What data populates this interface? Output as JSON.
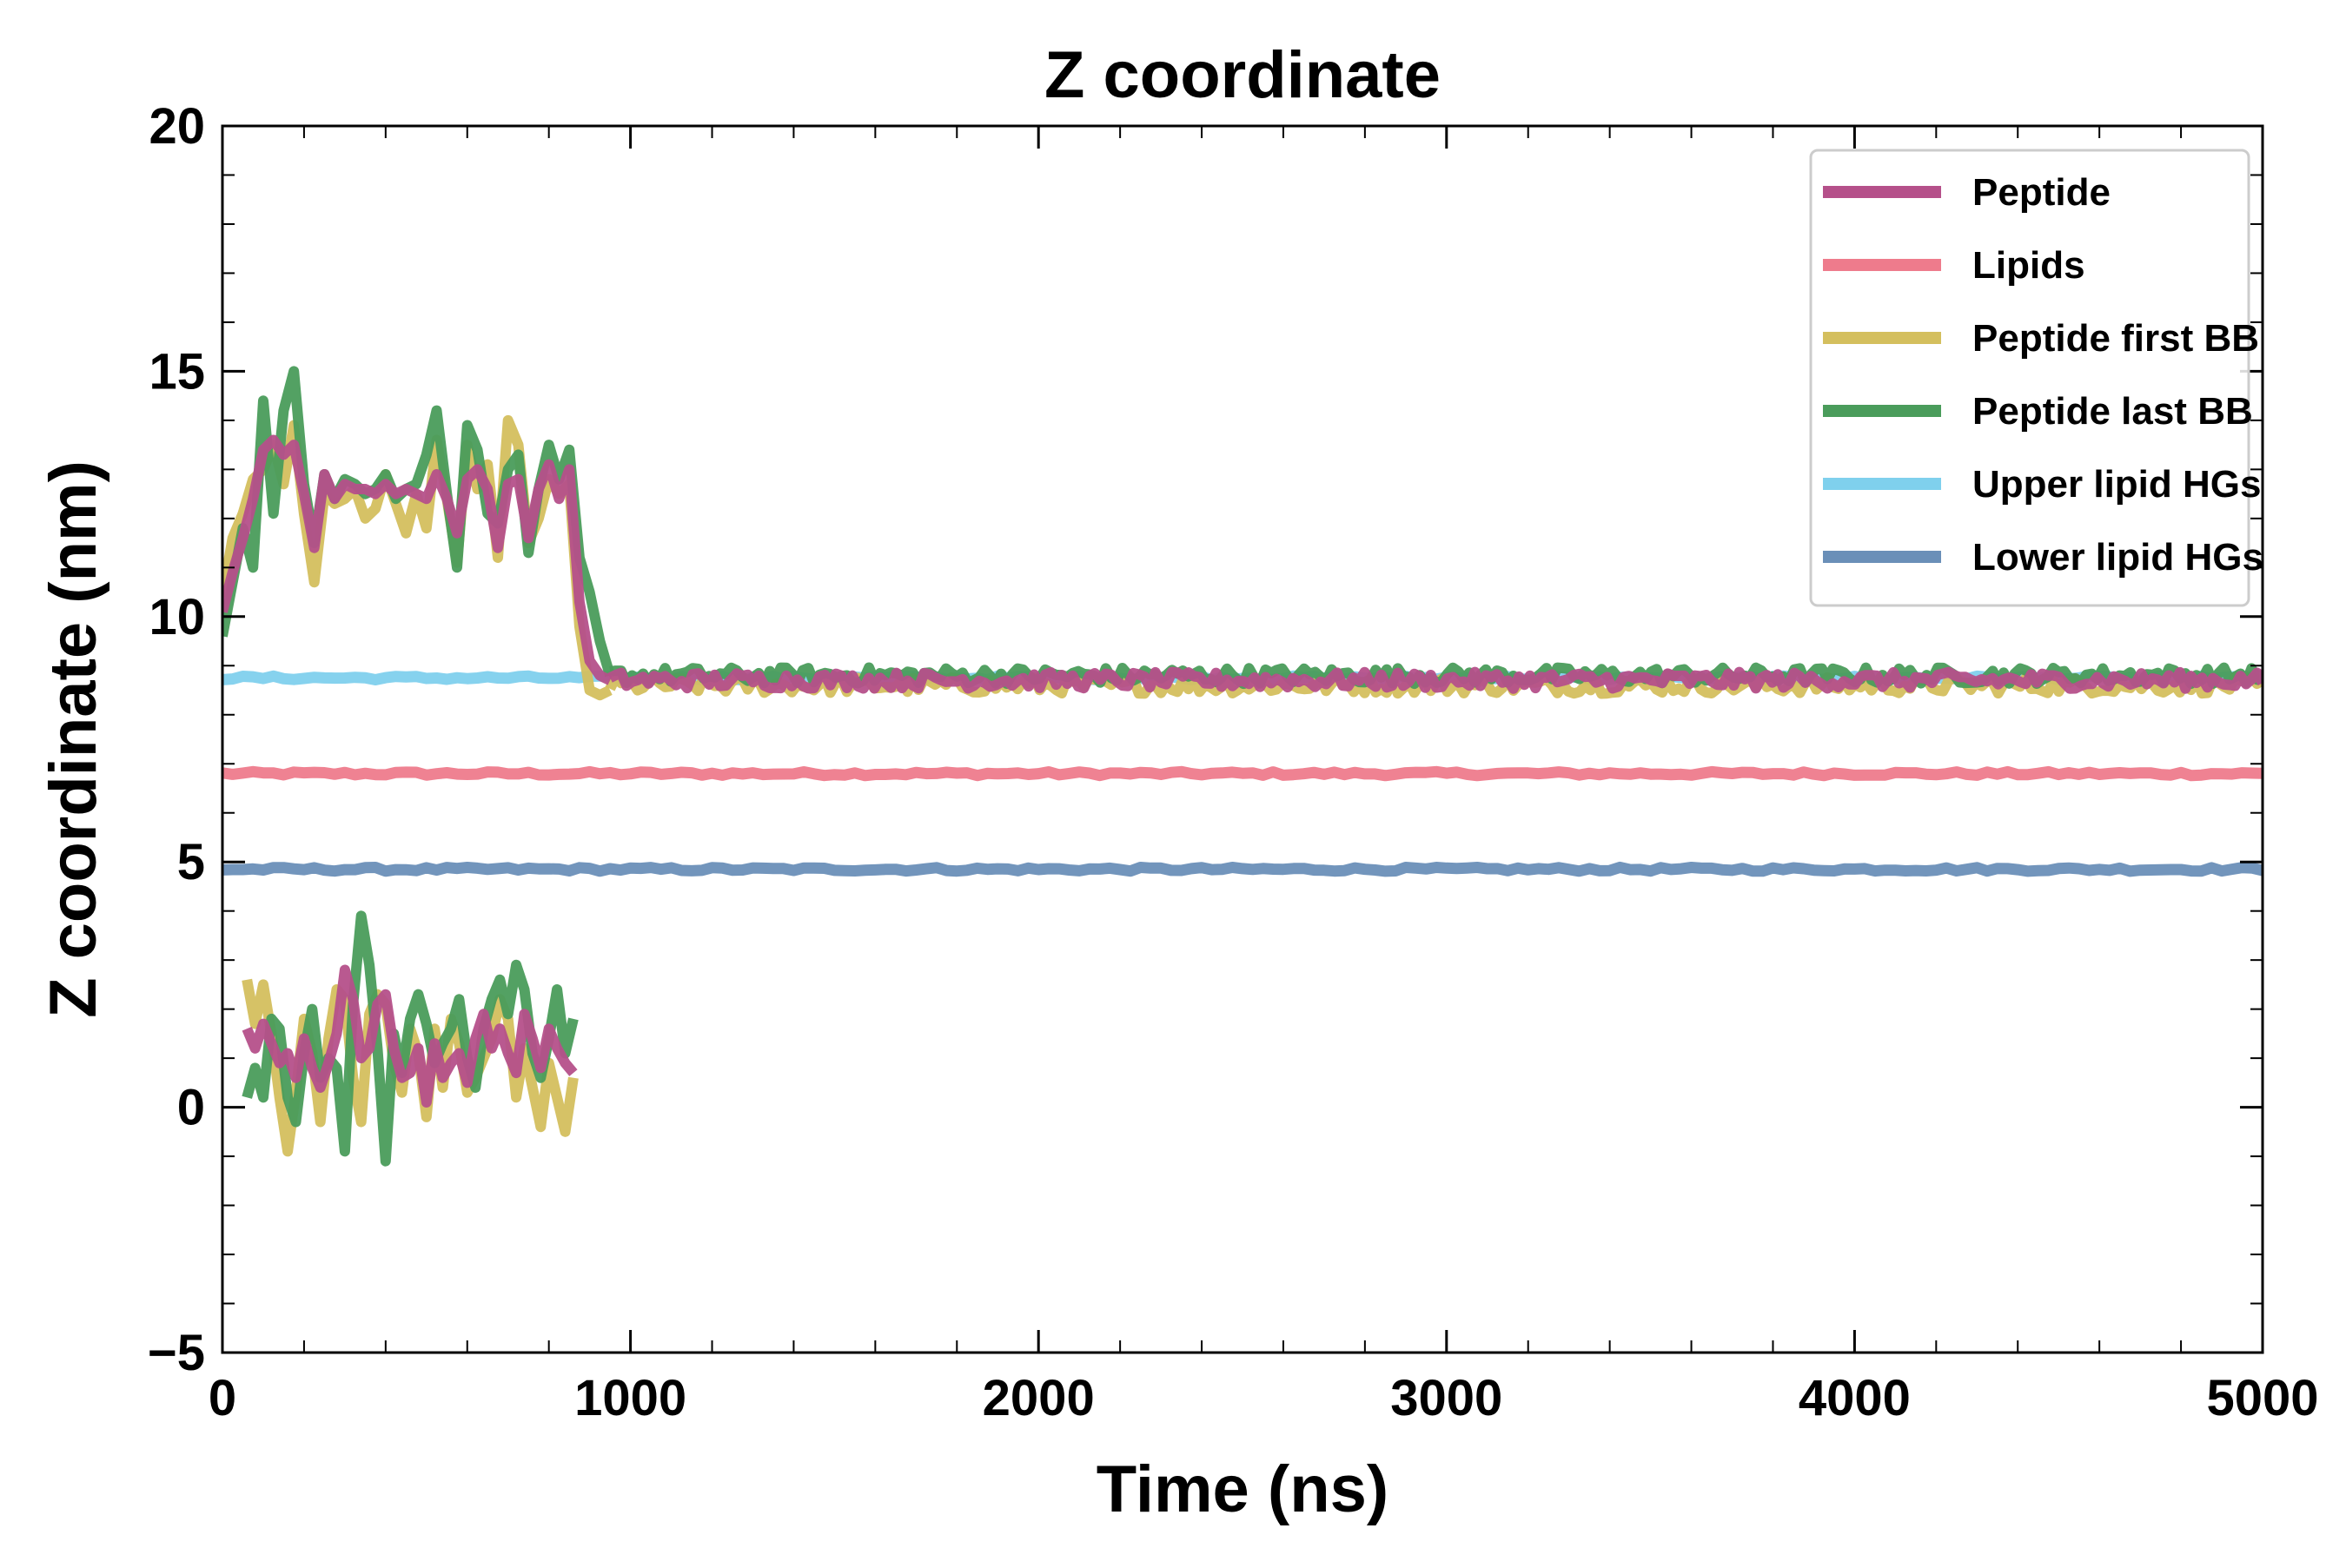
{
  "chart_data": {
    "type": "line",
    "title": "Z coordinate",
    "xlabel": "Time (ns)",
    "ylabel": "Z coordinate (nm)",
    "xlim": [
      0,
      5000
    ],
    "ylim": [
      -5,
      20
    ],
    "x_ticks": [
      0,
      1000,
      2000,
      3000,
      4000,
      5000
    ],
    "x_tick_labels": [
      "0",
      "1000",
      "2000",
      "3000",
      "4000",
      "5000"
    ],
    "y_ticks": [
      -5,
      0,
      5,
      10,
      15,
      20
    ],
    "y_tick_labels": [
      "−5",
      "0",
      "5",
      "10",
      "15",
      "20"
    ],
    "grid": false,
    "legend_position": "top-right",
    "series": [
      {
        "name": "Peptide",
        "color": "#b5508a",
        "upper_segment": {
          "x": [
            0,
            25,
            50,
            75,
            100,
            125,
            150,
            175,
            200,
            225,
            250,
            275,
            300,
            325,
            350,
            375,
            400,
            425,
            450,
            475,
            500,
            525,
            550,
            575,
            600,
            625,
            650,
            675,
            700,
            725,
            750,
            775,
            800,
            825,
            850,
            875,
            900,
            925,
            950
          ],
          "y": [
            10.1,
            10.9,
            11.6,
            12.4,
            13.4,
            13.6,
            13.3,
            13.5,
            12.5,
            11.4,
            12.9,
            12.4,
            12.7,
            12.6,
            12.6,
            12.5,
            12.7,
            12.5,
            12.6,
            12.5,
            12.4,
            12.9,
            12.4,
            11.7,
            12.8,
            13.0,
            12.6,
            11.4,
            12.7,
            12.8,
            11.6,
            12.6,
            13.1,
            12.4,
            13.0,
            10.3,
            9.1,
            8.8,
            8.7
          ]
        },
        "lower_segment": {
          "x": [
            60,
            80,
            100,
            120,
            140,
            160,
            180,
            200,
            220,
            240,
            260,
            280,
            300,
            320,
            340,
            360,
            380,
            400,
            420,
            440,
            460,
            480,
            500,
            520,
            540,
            560,
            580,
            600,
            620,
            640,
            660,
            680,
            700,
            720,
            740,
            760,
            780,
            800,
            820,
            840,
            860
          ],
          "y": [
            1.6,
            1.2,
            1.7,
            1.3,
            0.9,
            1.1,
            0.6,
            1.4,
            0.8,
            0.4,
            0.9,
            1.5,
            2.8,
            2.2,
            1.0,
            1.2,
            2.1,
            2.3,
            1.2,
            0.6,
            0.7,
            1.2,
            0.1,
            1.3,
            0.6,
            0.9,
            1.1,
            0.5,
            1.4,
            1.9,
            1.2,
            1.6,
            1.1,
            0.7,
            1.9,
            1.4,
            0.8,
            1.6,
            1.2,
            0.9,
            0.7
          ]
        },
        "steady_value": 8.7,
        "steady_start": 950
      },
      {
        "name": "Lipids",
        "color": "#ee7b8c",
        "steady_value": 6.8
      },
      {
        "name": "Peptide first BB",
        "color": "#d4bf5e",
        "upper_segment": {
          "x": [
            0,
            25,
            50,
            75,
            100,
            125,
            150,
            175,
            200,
            225,
            250,
            275,
            300,
            325,
            350,
            375,
            400,
            425,
            450,
            475,
            500,
            525,
            550,
            575,
            600,
            625,
            650,
            675,
            700,
            725,
            750,
            775,
            800,
            825,
            850,
            875,
            900,
            925,
            950
          ],
          "y": [
            10.4,
            11.6,
            12.1,
            12.8,
            13.0,
            13.5,
            12.7,
            13.9,
            12.1,
            10.7,
            12.5,
            12.3,
            12.4,
            12.6,
            12.0,
            12.2,
            12.9,
            12.3,
            11.7,
            12.5,
            11.8,
            13.6,
            12.4,
            11.1,
            13.5,
            12.6,
            13.1,
            11.2,
            14.0,
            13.5,
            11.5,
            12.0,
            12.8,
            12.5,
            12.7,
            9.8,
            8.5,
            8.4,
            8.5
          ]
        },
        "lower_segment": {
          "x": [
            60,
            80,
            100,
            120,
            140,
            160,
            180,
            200,
            220,
            240,
            260,
            280,
            300,
            320,
            340,
            360,
            380,
            400,
            420,
            440,
            460,
            480,
            500,
            520,
            540,
            560,
            580,
            600,
            620,
            640,
            660,
            680,
            700,
            720,
            740,
            760,
            780,
            800,
            820,
            840,
            860
          ],
          "y": [
            2.6,
            1.7,
            2.5,
            1.5,
            0.2,
            -0.9,
            0.3,
            1.8,
            1.1,
            -0.3,
            1.4,
            2.4,
            2.2,
            0.6,
            -0.3,
            1.9,
            2.3,
            2.1,
            0.9,
            0.3,
            1.6,
            1.1,
            -0.2,
            1.6,
            0.4,
            1.8,
            1.3,
            0.3,
            0.6,
            1.0,
            1.4,
            2.2,
            1.8,
            0.2,
            1.2,
            0.4,
            -0.4,
            0.9,
            0.2,
            -0.5,
            0.6
          ]
        },
        "steady_value": 8.6,
        "steady_start": 950
      },
      {
        "name": "Peptide last BB",
        "color": "#4a9c5b",
        "upper_segment": {
          "x": [
            0,
            25,
            50,
            75,
            100,
            125,
            150,
            175,
            200,
            225,
            250,
            275,
            300,
            325,
            350,
            375,
            400,
            425,
            450,
            475,
            500,
            525,
            550,
            575,
            600,
            625,
            650,
            675,
            700,
            725,
            750,
            775,
            800,
            825,
            850,
            875,
            900,
            925,
            950
          ],
          "y": [
            9.6,
            10.7,
            11.8,
            11.0,
            14.4,
            12.1,
            14.2,
            15.0,
            12.7,
            11.5,
            12.9,
            12.4,
            12.8,
            12.7,
            12.5,
            12.6,
            12.9,
            12.4,
            12.6,
            12.7,
            13.3,
            14.2,
            12.5,
            11.0,
            13.9,
            13.4,
            12.1,
            11.9,
            13.0,
            13.3,
            11.3,
            12.6,
            13.5,
            12.8,
            13.4,
            11.2,
            10.5,
            9.5,
            8.8
          ]
        },
        "lower_segment": {
          "x": [
            60,
            80,
            100,
            120,
            140,
            160,
            180,
            200,
            220,
            240,
            260,
            280,
            300,
            320,
            340,
            360,
            380,
            400,
            420,
            440,
            460,
            480,
            500,
            520,
            540,
            560,
            580,
            600,
            620,
            640,
            660,
            680,
            700,
            720,
            740,
            760,
            780,
            800,
            820,
            840,
            860
          ],
          "y": [
            0.2,
            0.8,
            0.2,
            1.8,
            1.6,
            0.2,
            -0.3,
            1.1,
            2.0,
            0.6,
            1.0,
            0.8,
            -0.9,
            2.1,
            3.9,
            2.9,
            1.2,
            -1.1,
            1.5,
            0.7,
            1.8,
            2.3,
            1.7,
            0.9,
            1.3,
            1.6,
            2.2,
            1.0,
            0.4,
            1.6,
            2.2,
            2.6,
            1.9,
            2.9,
            2.4,
            1.1,
            0.6,
            1.4,
            2.4,
            1.1,
            1.8
          ]
        },
        "steady_value": 8.8,
        "steady_start": 950
      },
      {
        "name": "Upper lipid HGs",
        "color": "#7fd0ed",
        "steady_value": 8.75
      },
      {
        "name": "Lower lipid HGs",
        "color": "#6a8fb8",
        "steady_value": 4.85
      }
    ]
  }
}
